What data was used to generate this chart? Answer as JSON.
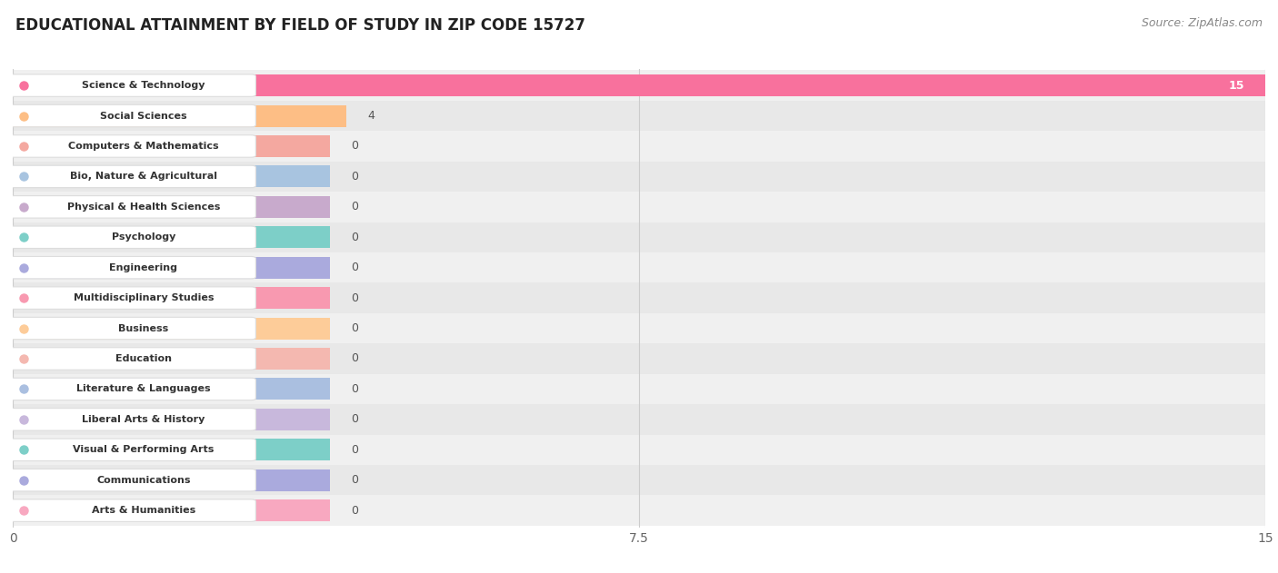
{
  "title": "EDUCATIONAL ATTAINMENT BY FIELD OF STUDY IN ZIP CODE 15727",
  "source": "Source: ZipAtlas.com",
  "categories": [
    "Science & Technology",
    "Social Sciences",
    "Computers & Mathematics",
    "Bio, Nature & Agricultural",
    "Physical & Health Sciences",
    "Psychology",
    "Engineering",
    "Multidisciplinary Studies",
    "Business",
    "Education",
    "Literature & Languages",
    "Liberal Arts & History",
    "Visual & Performing Arts",
    "Communications",
    "Arts & Humanities"
  ],
  "values": [
    15,
    4,
    0,
    0,
    0,
    0,
    0,
    0,
    0,
    0,
    0,
    0,
    0,
    0,
    0
  ],
  "bar_colors": [
    "#F8719D",
    "#FDBE85",
    "#F4A8A0",
    "#A8C4E0",
    "#C8AACC",
    "#7DCFC8",
    "#AAAADD",
    "#F899B0",
    "#FDCC99",
    "#F4B8B0",
    "#AABFE0",
    "#C8B8DC",
    "#7DCFC8",
    "#AAAADD",
    "#F8A8C0"
  ],
  "xlim": [
    0,
    15
  ],
  "xticks": [
    0,
    7.5,
    15
  ],
  "background_color": "#ffffff",
  "title_fontsize": 12,
  "source_fontsize": 9,
  "label_fontsize": 8,
  "value_fontsize": 9
}
